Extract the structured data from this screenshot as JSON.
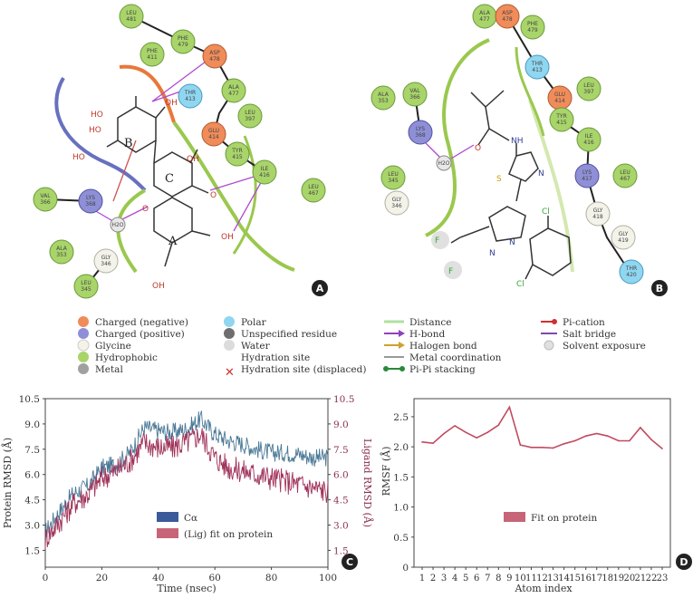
{
  "panels": {
    "a": "A",
    "b": "B",
    "c": "C",
    "d": "D"
  },
  "panelA": {
    "residues": [
      {
        "name": "LEU",
        "num": "481"
      },
      {
        "name": "PHE",
        "num": "479"
      },
      {
        "name": "PHE",
        "num": "411"
      },
      {
        "name": "ASP",
        "num": "478"
      },
      {
        "name": "THR",
        "num": "413"
      },
      {
        "name": "ALA",
        "num": "477"
      },
      {
        "name": "GLU",
        "num": "414"
      },
      {
        "name": "LEU",
        "num": "397"
      },
      {
        "name": "TYR",
        "num": "415"
      },
      {
        "name": "ILE",
        "num": "416"
      },
      {
        "name": "LEU",
        "num": "467"
      },
      {
        "name": "VAL",
        "num": "366"
      },
      {
        "name": "LYS",
        "num": "368"
      },
      {
        "name": "ALA",
        "num": "353"
      },
      {
        "name": "GLY",
        "num": "346"
      },
      {
        "name": "LEU",
        "num": "345"
      }
    ],
    "atoms": {
      "oh": "OH",
      "ho": "HO",
      "o": "O",
      "water": "H2O",
      "ringB": "B",
      "ringC": "C",
      "ringA": "A"
    }
  },
  "panelB": {
    "residues": [
      {
        "name": "ALA",
        "num": "477"
      },
      {
        "name": "ASP",
        "num": "478"
      },
      {
        "name": "PHE",
        "num": "479"
      },
      {
        "name": "THR",
        "num": "413"
      },
      {
        "name": "GLU",
        "num": "414"
      },
      {
        "name": "LEU",
        "num": "397"
      },
      {
        "name": "TYR",
        "num": "415"
      },
      {
        "name": "ILE",
        "num": "416"
      },
      {
        "name": "LYS",
        "num": "417"
      },
      {
        "name": "LEU",
        "num": "467"
      },
      {
        "name": "GLY",
        "num": "418"
      },
      {
        "name": "GLY",
        "num": "419"
      },
      {
        "name": "THR",
        "num": "420"
      },
      {
        "name": "VAL",
        "num": "366"
      },
      {
        "name": "ALA",
        "num": "353"
      },
      {
        "name": "LYS",
        "num": "368"
      },
      {
        "name": "LEU",
        "num": "345"
      },
      {
        "name": "GLY",
        "num": "346"
      }
    ],
    "atoms": {
      "o": "O",
      "nh": "NH",
      "n": "N",
      "s": "S",
      "f": "F",
      "cl": "Cl",
      "water": "H2O"
    }
  },
  "legend": {
    "col1": [
      "Charged (negative)",
      "Charged (positive)",
      "Glycine",
      "Hydrophobic",
      "Metal"
    ],
    "col2": [
      "Polar",
      "Unspecified residue",
      "Water",
      "Hydration site",
      "Hydration site (displaced)"
    ],
    "col3": [
      "Distance",
      "H-bond",
      "Halogen bond",
      "Metal coordination",
      "Pi-Pi stacking"
    ],
    "col4": [
      "Pi-cation",
      "Salt bridge",
      "Solvent exposure"
    ]
  },
  "colors": {
    "negative": "#f08c5a",
    "positive": "#8e8fd6",
    "glycine": "#f3f3ea",
    "hydrophobic": "#a8d46a",
    "metal": "#a0a0a0",
    "polar": "#8fd6f0",
    "unspecified": "#6e6e6e",
    "water": "#dcdcdc",
    "rmsd_prot": "#4a7896",
    "rmsd_lig": "#a0335a",
    "rmsf": "#c04a60"
  },
  "chart_data": [
    {
      "type": "line",
      "x": [
        0,
        5,
        10,
        15,
        20,
        25,
        30,
        35,
        40,
        45,
        50,
        55,
        60,
        65,
        70,
        75,
        80,
        85,
        90,
        95,
        100
      ],
      "series": [
        {
          "name": "Cα",
          "values": [
            2.6,
            3.8,
            4.9,
            5.3,
            6.4,
            6.6,
            7.3,
            8.8,
            8.6,
            8.5,
            8.7,
            9.3,
            8.4,
            8.0,
            7.8,
            7.5,
            7.3,
            7.3,
            7.2,
            7.0,
            7.0
          ]
        },
        {
          "name": "(Lig) fit on protein",
          "values": [
            2.2,
            3.2,
            4.3,
            4.8,
            5.8,
            6.2,
            6.8,
            7.9,
            7.6,
            7.6,
            7.9,
            8.4,
            7.0,
            6.4,
            6.2,
            6.0,
            5.8,
            5.6,
            5.4,
            5.2,
            5.0
          ]
        }
      ],
      "xlabel": "Time (nsec)",
      "ylabel": "Protein RMSD (Å)",
      "y2label": "Ligand RMSD (Å)",
      "xlim": [
        0,
        100
      ],
      "ylim": [
        0.5,
        10.5
      ],
      "xticks": [
        "0",
        "20",
        "40",
        "60",
        "80",
        "100"
      ],
      "yticks": [
        "1.5",
        "3.0",
        "4.5",
        "6.0",
        "7.5",
        "9.0",
        "10.5"
      ],
      "y2ticks": [
        "1.5",
        "3.0",
        "4.5",
        "6.0",
        "7.5",
        "9.0",
        "10.5"
      ]
    },
    {
      "type": "line",
      "categories": [
        "1",
        "2",
        "3",
        "4",
        "5",
        "6",
        "7",
        "8",
        "9",
        "10",
        "11",
        "12",
        "13",
        "14",
        "15",
        "16",
        "17",
        "18",
        "19",
        "20",
        "21",
        "22",
        "23"
      ],
      "series": [
        {
          "name": "Fit on protein",
          "values": [
            2.08,
            2.06,
            2.22,
            2.35,
            2.24,
            2.15,
            2.24,
            2.36,
            2.66,
            2.03,
            1.99,
            1.99,
            1.98,
            2.05,
            2.1,
            2.18,
            2.22,
            2.18,
            2.1,
            2.1,
            2.32,
            2.12,
            1.97
          ]
        }
      ],
      "xlabel": "Atom index",
      "ylabel": "RMSF (Å)",
      "ylim": [
        0,
        2.8
      ],
      "yticks": [
        "0",
        "0.5",
        "1.0",
        "1.5",
        "2.0",
        "2.5"
      ]
    }
  ]
}
